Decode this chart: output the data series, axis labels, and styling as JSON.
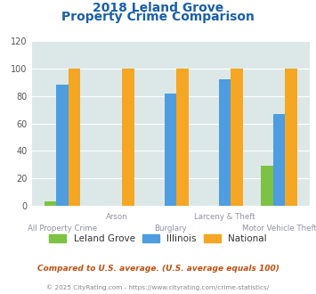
{
  "title_line1": "2018 Leland Grove",
  "title_line2": "Property Crime Comparison",
  "categories": [
    "All Property Crime",
    "Arson",
    "Burglary",
    "Larceny & Theft",
    "Motor Vehicle Theft"
  ],
  "leland_grove": [
    3,
    0,
    0,
    0,
    29
  ],
  "illinois": [
    88,
    0,
    82,
    92,
    67
  ],
  "national": [
    100,
    100,
    100,
    100,
    100
  ],
  "color_leland": "#7dc242",
  "color_illinois": "#4d9de0",
  "color_national": "#f5a623",
  "ylim": [
    0,
    120
  ],
  "yticks": [
    0,
    20,
    40,
    60,
    80,
    100,
    120
  ],
  "background_color": "#dce8e8",
  "subtitle_text": "Compared to U.S. average. (U.S. average equals 100)",
  "footer_text": "© 2025 CityRating.com - https://www.cityrating.com/crime-statistics/",
  "title_color": "#1a5fa8",
  "subtitle_color": "#c05010",
  "footer_color": "#888888",
  "xlabel_color": "#9090a8",
  "bar_width": 0.22
}
